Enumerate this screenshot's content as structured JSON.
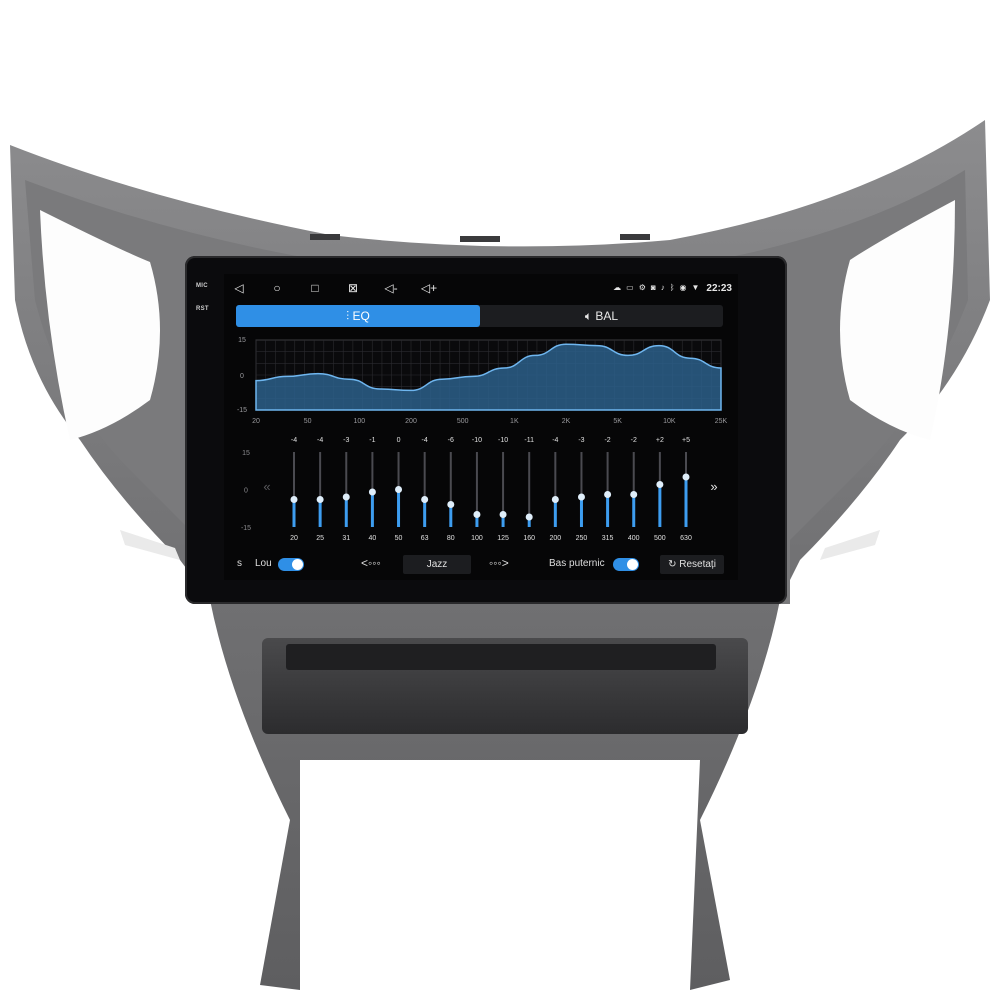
{
  "bezel": {
    "mic_label": "MIC",
    "rst_label": "RST"
  },
  "status": {
    "time": "22:23"
  },
  "tabs": [
    {
      "label": "EQ"
    },
    {
      "label": "BAL"
    }
  ],
  "curve": {
    "y_ticks": [
      "15",
      "0",
      "-15"
    ],
    "x_ticks": [
      "20",
      "50",
      "100",
      "200",
      "500",
      "1K",
      "2K",
      "5K",
      "10K",
      "25K"
    ]
  },
  "eq": {
    "y_ticks": [
      "15",
      "0",
      "-15"
    ],
    "bands": [
      {
        "freq": "20",
        "gain": "-4",
        "value": -4
      },
      {
        "freq": "25",
        "gain": "-4",
        "value": -4
      },
      {
        "freq": "31",
        "gain": "-3",
        "value": -3
      },
      {
        "freq": "40",
        "gain": "-1",
        "value": -1
      },
      {
        "freq": "50",
        "gain": "0",
        "value": 0
      },
      {
        "freq": "63",
        "gain": "-4",
        "value": -4
      },
      {
        "freq": "80",
        "gain": "-6",
        "value": -6
      },
      {
        "freq": "100",
        "gain": "-10",
        "value": -10
      },
      {
        "freq": "125",
        "gain": "-10",
        "value": -10
      },
      {
        "freq": "160",
        "gain": "-11",
        "value": -11
      },
      {
        "freq": "200",
        "gain": "-4",
        "value": -4
      },
      {
        "freq": "250",
        "gain": "-3",
        "value": -3
      },
      {
        "freq": "315",
        "gain": "-2",
        "value": -2
      },
      {
        "freq": "400",
        "gain": "-2",
        "value": -2
      },
      {
        "freq": "500",
        "gain": "+2",
        "value": 2
      },
      {
        "freq": "630",
        "gain": "+5",
        "value": 5
      }
    ]
  },
  "bottom": {
    "left_cut_label": "s",
    "loudness_label": "Lou",
    "preset": "Jazz",
    "bass_label": "Bas puternic",
    "reset_label": "Resetați"
  },
  "colors": {
    "accent": "#2f8fe6",
    "curve_fill": "#2c5f8a"
  }
}
